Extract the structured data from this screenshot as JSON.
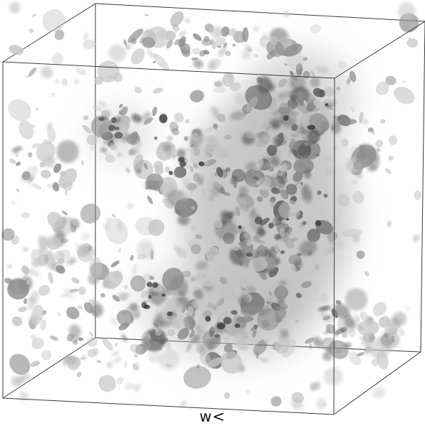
{
  "figure": {
    "axis_label": "w<",
    "colors": {
      "edge": "#3a3a3a",
      "dense_blob": "#5e5e5e",
      "medium_blob": "#8c8c8c",
      "light_blob": "#c6c6c6",
      "background": "#ffffff"
    }
  }
}
